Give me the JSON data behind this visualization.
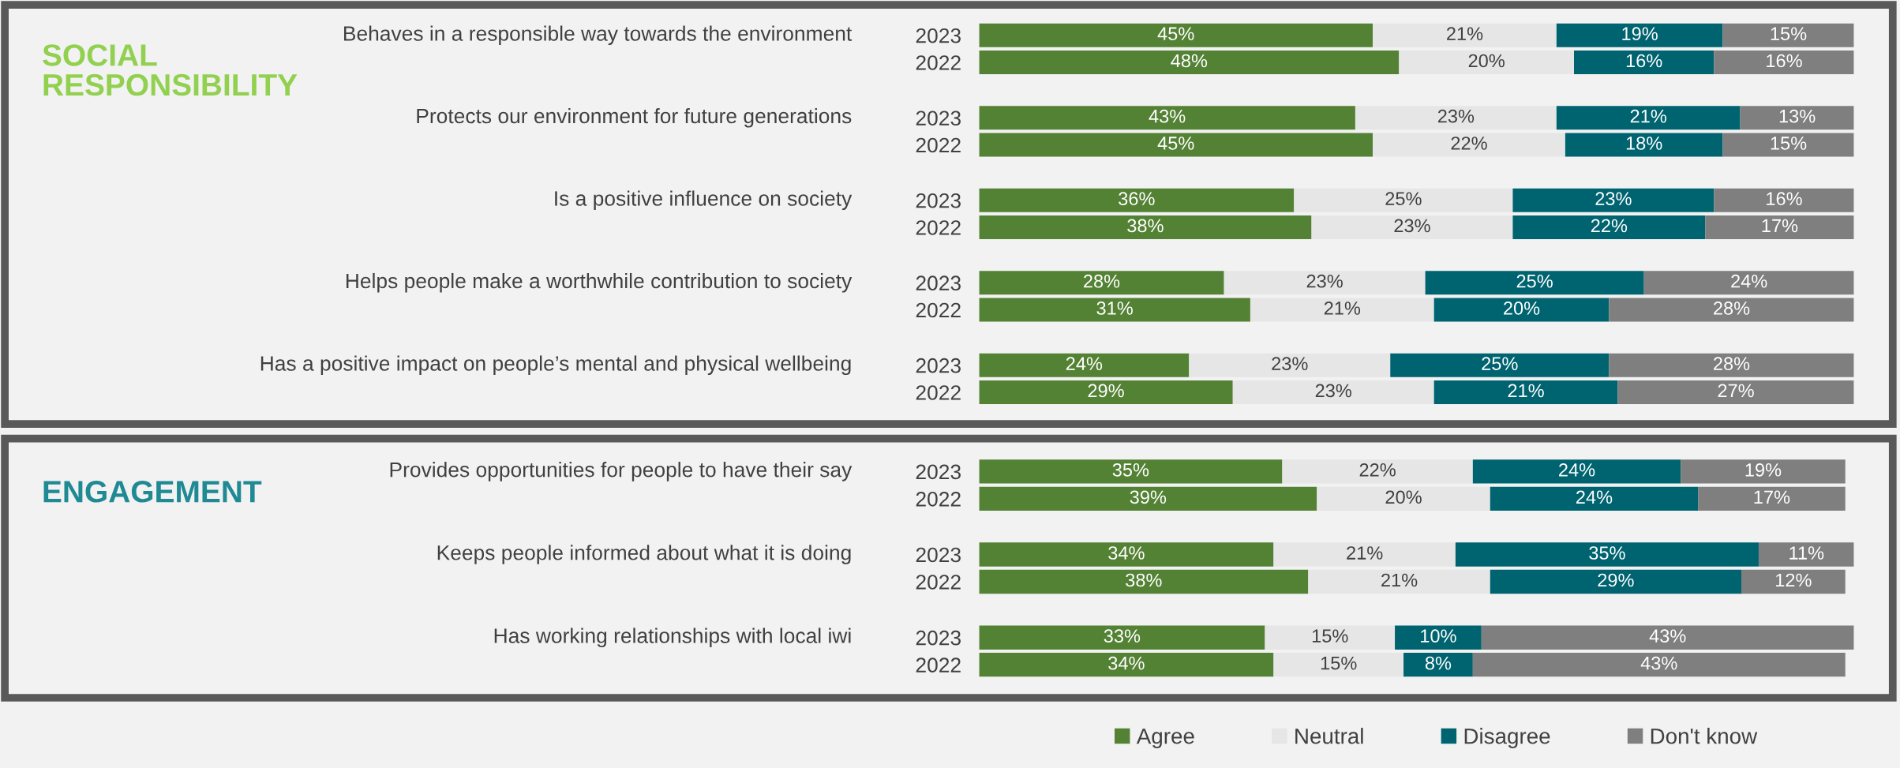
{
  "chart_data": [
    {
      "type": "bar",
      "orientation": "horizontal",
      "stacked": true,
      "xlim": [
        0,
        100
      ],
      "tick_labels": "y",
      "legend": "bottom",
      "categories": [
        "2023",
        "2022",
        "2023",
        "2022",
        "2023",
        "2022",
        "2023",
        "2022",
        "2023",
        "2022"
      ],
      "annotations": [
        "SOCIAL RESPONSIBILITY",
        "Behaves in a responsible way towards the environment",
        "Protects our environment for future generations",
        "Is a positive influence on society",
        "Helps people make a worthwhile contribution to society",
        "Has a positive impact on people’s mental and physical wellbeing"
      ],
      "series": [
        {
          "name": "Agree",
          "color": "#548235",
          "values": [
            45,
            48,
            43,
            45,
            36,
            38,
            28,
            31,
            24,
            29
          ],
          "value_labels": [
            "45%",
            "48%",
            "43%",
            "45%",
            "36%",
            "38%",
            "28%",
            "31%",
            "24%",
            "29%"
          ]
        },
        {
          "name": "Neutral",
          "color": "#e7e6e6",
          "values": [
            21,
            20,
            23,
            22,
            25,
            23,
            23,
            21,
            23,
            23
          ],
          "value_labels": [
            "21%",
            "20%",
            "23%",
            "22%",
            "25%",
            "23%",
            "23%",
            "21%",
            "23%",
            "23%"
          ]
        },
        {
          "name": "Disagree",
          "color": "#006470",
          "values": [
            19,
            16,
            21,
            18,
            23,
            22,
            25,
            20,
            25,
            21
          ],
          "value_labels": [
            "19%",
            "16%",
            "21%",
            "18%",
            "23%",
            "22%",
            "25%",
            "20%",
            "25%",
            "21%"
          ]
        },
        {
          "name": "Don't know",
          "color": "#7f7f7f",
          "values": [
            15,
            16,
            13,
            15,
            16,
            17,
            24,
            28,
            28,
            27
          ],
          "value_labels": [
            "15%",
            "16%",
            "13%",
            "15%",
            "16%",
            "17%",
            "24%",
            "28%",
            "28%",
            "27%"
          ]
        }
      ]
    },
    {
      "type": "bar",
      "orientation": "horizontal",
      "stacked": true,
      "xlim": [
        0,
        101
      ],
      "tick_labels": "y",
      "legend": "bottom",
      "categories": [
        "2023",
        "2022",
        "2023",
        "2022",
        "2023",
        "2022"
      ],
      "annotations": [
        "ENGAGEMENT",
        "Provides opportunities for people to have their say",
        "Keeps people informed about what it is doing",
        "Has working relationships with local iwi"
      ],
      "series": [
        {
          "name": "Agree",
          "color": "#548235",
          "values": [
            35,
            39,
            34,
            38,
            33,
            34
          ],
          "value_labels": [
            "35%",
            "39%",
            "34%",
            "38%",
            "33%",
            "34%"
          ]
        },
        {
          "name": "Neutral",
          "color": "#e7e6e6",
          "values": [
            22,
            20,
            21,
            21,
            15,
            15
          ],
          "value_labels": [
            "22%",
            "20%",
            "21%",
            "21%",
            "15%",
            "15%"
          ]
        },
        {
          "name": "Disagree",
          "color": "#006470",
          "values": [
            24,
            24,
            35,
            29,
            10,
            8
          ],
          "value_labels": [
            "24%",
            "24%",
            "35%",
            "29%",
            "10%",
            "8%"
          ]
        },
        {
          "name": "Don't know",
          "color": "#7f7f7f",
          "values": [
            19,
            17,
            11,
            12,
            43,
            43
          ],
          "value_labels": [
            "19%",
            "17%",
            "11%",
            "12%",
            "43%",
            "43%"
          ]
        }
      ]
    }
  ]
}
